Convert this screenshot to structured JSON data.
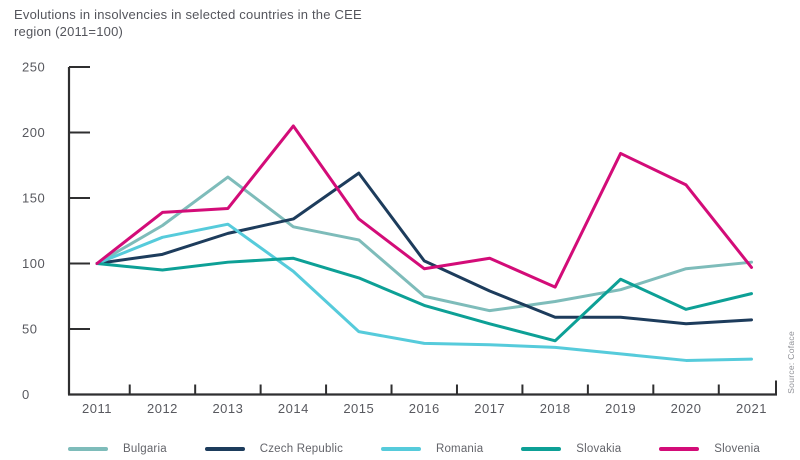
{
  "chart_data": {
    "type": "line",
    "title_lines": [
      "Evolutions in insolvencies in selected countries in the CEE",
      "region (2011=100)"
    ],
    "source": "Source: Coface",
    "x": [
      "2011",
      "2012",
      "2013",
      "2014",
      "2015",
      "2016",
      "2017",
      "2018",
      "2019",
      "2020",
      "2021"
    ],
    "series": [
      {
        "name": "Bulgaria",
        "color": "#7ebcba",
        "values": [
          100,
          129,
          166,
          128,
          118,
          75,
          64,
          71,
          80,
          96,
          101
        ]
      },
      {
        "name": "Czech Republic",
        "color": "#1d3c5c",
        "values": [
          100,
          107,
          123,
          134,
          169,
          102,
          79,
          59,
          59,
          54,
          57
        ]
      },
      {
        "name": "Romania",
        "color": "#56cbdb",
        "values": [
          100,
          120,
          130,
          94,
          48,
          39,
          38,
          36,
          31,
          26,
          27
        ]
      },
      {
        "name": "Slovakia",
        "color": "#0da096",
        "values": [
          100,
          95,
          101,
          104,
          89,
          68,
          54,
          41,
          88,
          65,
          77
        ]
      },
      {
        "name": "Slovenia",
        "color": "#d30c78",
        "values": [
          100,
          139,
          142,
          205,
          134,
          96,
          104,
          82,
          184,
          160,
          97
        ]
      }
    ],
    "ylim": [
      0,
      250
    ],
    "yticks": [
      0,
      50,
      100,
      150,
      200,
      250
    ],
    "xlabel": "",
    "ylabel": "",
    "grid": false,
    "legend_position": "bottom",
    "axis_color": "#2f2f30",
    "tick_label_color": "#58595f"
  }
}
